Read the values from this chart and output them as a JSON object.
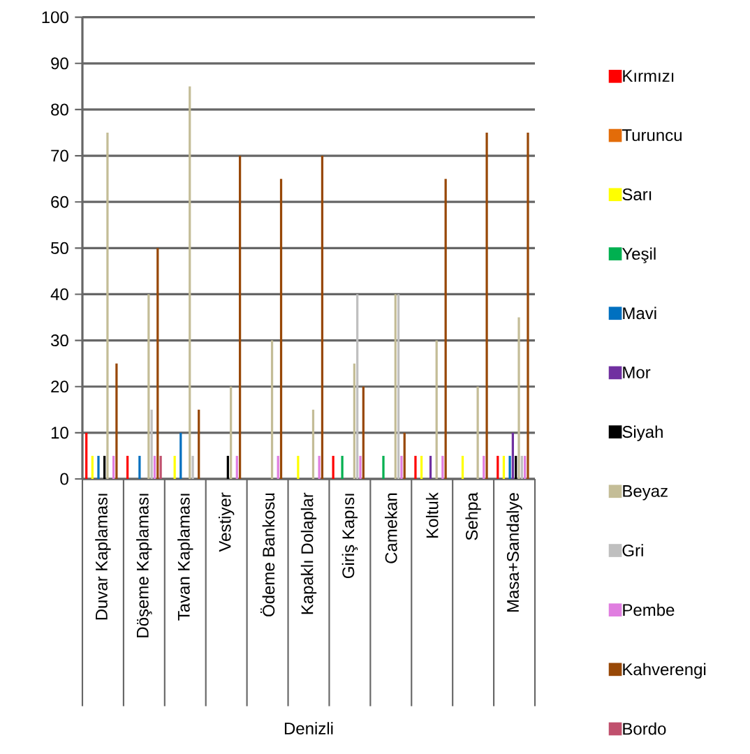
{
  "chart_data": {
    "type": "bar",
    "annotations": [
      "Denizli"
    ],
    "categories": [
      "Duvar Kaplaması",
      "Döşeme Kaplaması",
      "Tavan Kaplaması",
      "Vestiyer",
      "Ödeme Bankosu",
      "Kapaklı Dolaplar",
      "Giriş Kapısı",
      "Camekan",
      "Koltuk",
      "Sehpa",
      "Masa+Sandalye"
    ],
    "series": [
      {
        "name": "Kırmızı",
        "color": "#ff0000",
        "values": [
          10,
          5,
          0,
          0,
          0,
          0,
          5,
          0,
          5,
          0,
          5
        ]
      },
      {
        "name": "Turuncu",
        "color": "#e36c09",
        "values": [
          0,
          0,
          0,
          0,
          0,
          0,
          0,
          0,
          0,
          0,
          0
        ]
      },
      {
        "name": "Sarı",
        "color": "#ffff00",
        "values": [
          5,
          0,
          5,
          0,
          0,
          5,
          0,
          0,
          5,
          5,
          5
        ]
      },
      {
        "name": "Yeşil",
        "color": "#00b050",
        "values": [
          0,
          0,
          0,
          0,
          0,
          0,
          5,
          5,
          0,
          0,
          0
        ]
      },
      {
        "name": "Mavi",
        "color": "#0070c0",
        "values": [
          5,
          5,
          10,
          0,
          0,
          0,
          0,
          0,
          0,
          0,
          5
        ]
      },
      {
        "name": "Mor",
        "color": "#7030a0",
        "values": [
          0,
          0,
          0,
          0,
          0,
          0,
          0,
          0,
          5,
          0,
          10
        ]
      },
      {
        "name": "Siyah",
        "color": "#000000",
        "values": [
          5,
          0,
          0,
          5,
          0,
          0,
          0,
          0,
          0,
          0,
          5
        ]
      },
      {
        "name": "Beyaz",
        "color": "#c4bd97",
        "values": [
          75,
          40,
          85,
          20,
          30,
          15,
          25,
          40,
          30,
          20,
          35
        ]
      },
      {
        "name": "Gri",
        "color": "#bfbfbf",
        "values": [
          0,
          15,
          5,
          0,
          0,
          0,
          40,
          40,
          0,
          0,
          5
        ]
      },
      {
        "name": "Pembe",
        "color": "#e07ee0",
        "values": [
          5,
          5,
          0,
          5,
          5,
          5,
          5,
          5,
          5,
          5,
          5
        ]
      },
      {
        "name": "Kahverengi",
        "color": "#984807",
        "values": [
          25,
          50,
          15,
          70,
          65,
          70,
          20,
          10,
          65,
          75,
          75
        ]
      },
      {
        "name": "Bordo",
        "color": "#c0506d",
        "values": [
          0,
          5,
          0,
          0,
          0,
          0,
          0,
          0,
          0,
          0,
          0
        ]
      }
    ],
    "ylim": [
      0,
      100
    ],
    "yticks": [
      0,
      10,
      20,
      30,
      40,
      50,
      60,
      70,
      80,
      90,
      100
    ],
    "grid": "y",
    "legend": "right"
  }
}
